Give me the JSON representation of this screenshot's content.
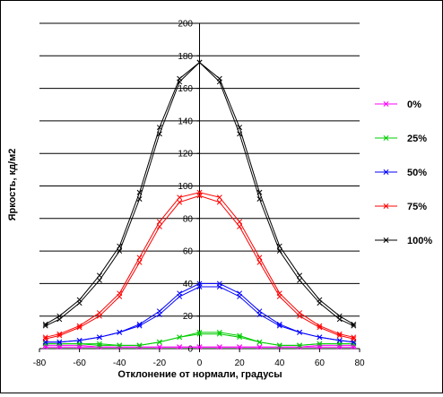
{
  "chart_data": {
    "type": "line",
    "xlabel": "Отклонение от нормали, градусы",
    "ylabel": "Яркость, кд/м2",
    "xlim": [
      -80,
      80
    ],
    "ylim": [
      0,
      200
    ],
    "x_ticks": [
      "-80",
      "-60",
      "-40",
      "-20",
      "0",
      "20",
      "40",
      "60",
      "80"
    ],
    "y_ticks": [
      "0",
      "20",
      "40",
      "60",
      "80",
      "100",
      "120",
      "140",
      "160",
      "180",
      "200"
    ],
    "grid": "horizontal",
    "legend_position": "right",
    "series": [
      {
        "name": "0%",
        "color": "#ff00ff",
        "x": [
          -77,
          -70,
          -60,
          -50,
          -40,
          -30,
          -20,
          -10,
          0,
          10,
          20,
          30,
          40,
          50,
          60,
          70,
          77
        ],
        "y_a": [
          1,
          1,
          1,
          1,
          1,
          1,
          1,
          1,
          1,
          1,
          1,
          1,
          1,
          1,
          1,
          1,
          1
        ],
        "y_b": [
          2,
          2,
          2,
          1,
          1,
          1,
          1,
          1,
          1,
          1,
          1,
          1,
          1,
          1,
          2,
          2,
          2
        ]
      },
      {
        "name": "25%",
        "color": "#00cc00",
        "x": [
          -77,
          -70,
          -60,
          -50,
          -40,
          -30,
          -20,
          -10,
          0,
          10,
          20,
          30,
          40,
          50,
          60,
          70,
          77
        ],
        "y_a": [
          3,
          3,
          3,
          2,
          2,
          2,
          4,
          7,
          9,
          9,
          7,
          4,
          2,
          2,
          3,
          3,
          3
        ],
        "y_b": [
          3,
          3,
          3,
          3,
          2,
          2,
          4,
          7,
          10,
          10,
          8,
          4,
          2,
          2,
          3,
          3,
          3
        ]
      },
      {
        "name": "50%",
        "color": "#0000ff",
        "x": [
          -77,
          -70,
          -60,
          -50,
          -40,
          -30,
          -20,
          -10,
          0,
          10,
          20,
          30,
          40,
          50,
          60,
          70,
          77
        ],
        "y_a": [
          4,
          4,
          5,
          7,
          10,
          14,
          21,
          32,
          38,
          38,
          32,
          21,
          14,
          10,
          7,
          5,
          4
        ],
        "y_b": [
          4,
          4,
          5,
          7,
          10,
          15,
          23,
          34,
          40,
          40,
          34,
          23,
          15,
          10,
          7,
          5,
          4
        ]
      },
      {
        "name": "75%",
        "color": "#ff0000",
        "x": [
          -77,
          -70,
          -60,
          -50,
          -40,
          -30,
          -20,
          -10,
          0,
          10,
          20,
          30,
          40,
          50,
          60,
          70,
          77
        ],
        "y_a": [
          6,
          8,
          13,
          20,
          32,
          53,
          75,
          90,
          94,
          90,
          75,
          53,
          32,
          20,
          13,
          8,
          6
        ],
        "y_b": [
          7,
          9,
          14,
          22,
          34,
          56,
          78,
          93,
          96,
          93,
          78,
          56,
          34,
          22,
          14,
          9,
          7
        ]
      },
      {
        "name": "100%",
        "color": "#000000",
        "x": [
          -77,
          -70,
          -60,
          -50,
          -40,
          -30,
          -20,
          -10,
          0,
          10,
          20,
          30,
          40,
          50,
          60,
          70,
          77
        ],
        "y_a": [
          14,
          18,
          28,
          42,
          60,
          92,
          132,
          164,
          176,
          164,
          132,
          92,
          60,
          42,
          28,
          18,
          14
        ],
        "y_b": [
          15,
          20,
          30,
          45,
          63,
          96,
          136,
          166,
          176,
          166,
          136,
          96,
          63,
          45,
          30,
          20,
          15
        ]
      }
    ]
  }
}
